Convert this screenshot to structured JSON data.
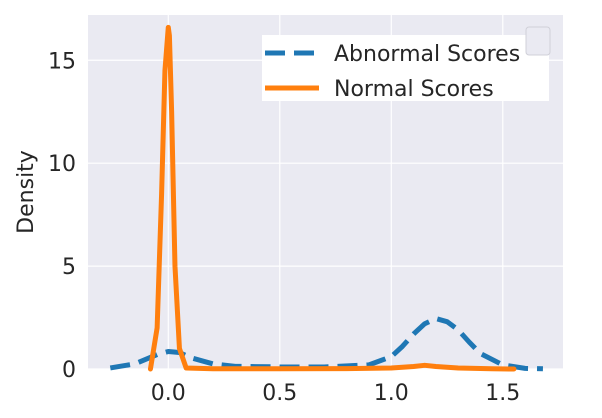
{
  "chart_data": {
    "type": "line",
    "ylabel": "Density",
    "xlim": [
      -0.36,
      1.77
    ],
    "ylim": [
      0,
      17.2
    ],
    "x_ticks": [
      0.0,
      0.5,
      1.0,
      1.5
    ],
    "x_tick_labels": [
      "0.0",
      "0.5",
      "1.0",
      "1.5"
    ],
    "y_ticks": [
      0,
      5,
      10,
      15
    ],
    "y_tick_labels": [
      "0",
      "5",
      "10",
      "15"
    ],
    "grid": true,
    "legend_position": "top-right",
    "series": [
      {
        "name": "Abnormal Scores",
        "style": "dashed",
        "color": "#1f77b4",
        "x": [
          -0.26,
          -0.15,
          -0.05,
          0.0,
          0.05,
          0.1,
          0.2,
          0.3,
          0.5,
          0.7,
          0.9,
          1.0,
          1.05,
          1.1,
          1.15,
          1.2,
          1.25,
          1.3,
          1.35,
          1.4,
          1.5,
          1.6,
          1.68
        ],
        "y": [
          0.05,
          0.25,
          0.7,
          0.85,
          0.8,
          0.55,
          0.25,
          0.13,
          0.1,
          0.1,
          0.2,
          0.6,
          1.1,
          1.7,
          2.2,
          2.45,
          2.3,
          1.9,
          1.3,
          0.75,
          0.2,
          0.03,
          0.01
        ]
      },
      {
        "name": "Normal Scores",
        "style": "solid",
        "color": "#ff7f0e",
        "x": [
          -0.08,
          -0.05,
          -0.03,
          -0.015,
          0.0,
          0.005,
          0.015,
          0.03,
          0.05,
          0.08,
          0.2,
          0.5,
          0.8,
          1.0,
          1.1,
          1.15,
          1.2,
          1.3,
          1.45,
          1.55
        ],
        "y": [
          0.0,
          2.0,
          8.5,
          14.5,
          16.6,
          16.2,
          12.5,
          5.0,
          1.0,
          0.05,
          0.01,
          0.01,
          0.02,
          0.05,
          0.12,
          0.18,
          0.12,
          0.05,
          0.01,
          0.0
        ]
      }
    ]
  }
}
